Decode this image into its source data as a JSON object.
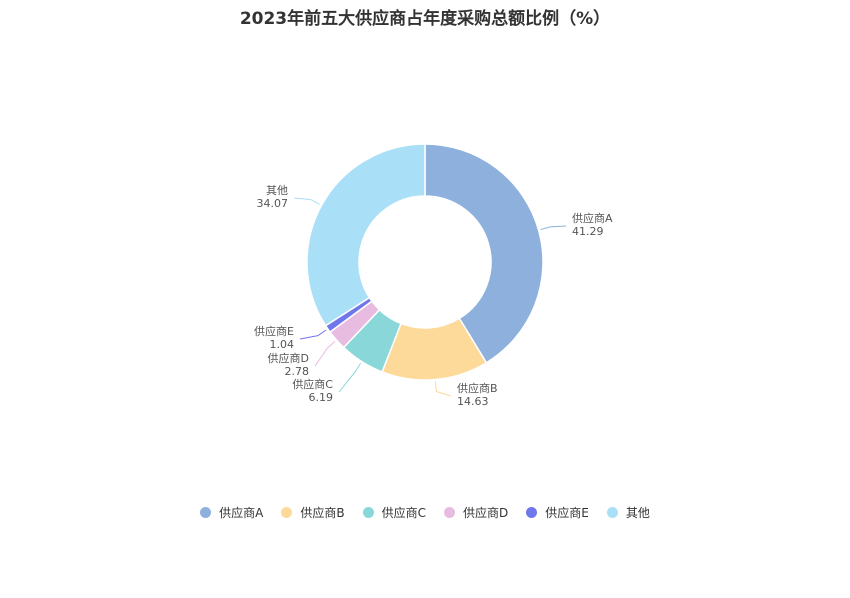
{
  "chart_data": {
    "type": "pie",
    "title": "2023年前五大供应商占年度采购总额比例（%）",
    "categories": [
      "供应商A",
      "供应商B",
      "供应商C",
      "供应商D",
      "供应商E",
      "其他"
    ],
    "values": [
      41.29,
      14.63,
      6.19,
      2.78,
      1.04,
      34.07
    ],
    "value_labels": [
      "41.29",
      "14.63",
      "6.19",
      "2.78",
      "1.04",
      "34.07"
    ],
    "colors": [
      "#8eb0dc",
      "#fdd99a",
      "#8ad7da",
      "#e8bce0",
      "#6f77eb",
      "#aadff8"
    ],
    "donut": true,
    "legend_position": "bottom"
  }
}
